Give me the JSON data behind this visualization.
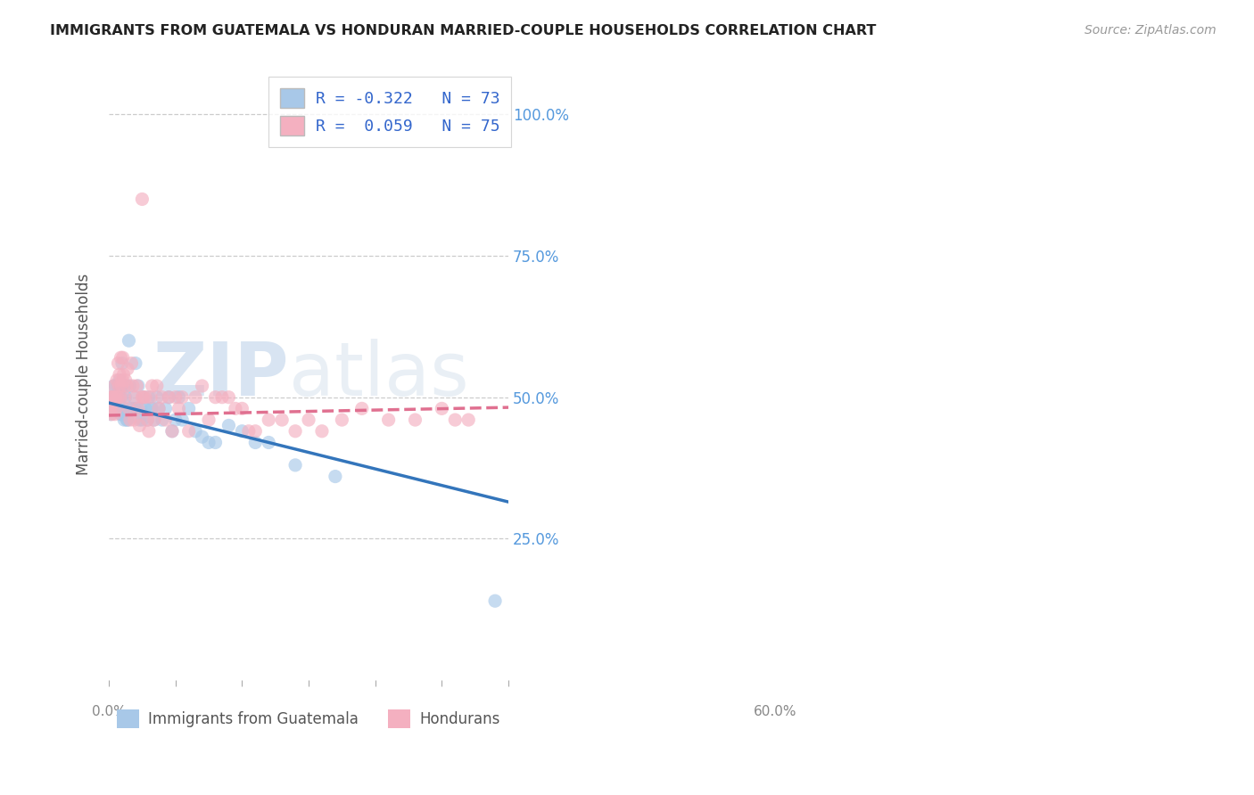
{
  "title": "IMMIGRANTS FROM GUATEMALA VS HONDURAN MARRIED-COUPLE HOUSEHOLDS CORRELATION CHART",
  "source": "Source: ZipAtlas.com",
  "ylabel": "Married-couple Households",
  "ytick_labels": [
    "25.0%",
    "50.0%",
    "75.0%",
    "100.0%"
  ],
  "ytick_values": [
    0.25,
    0.5,
    0.75,
    1.0
  ],
  "xmin": 0.0,
  "xmax": 0.6,
  "ymin": 0.0,
  "ymax": 1.08,
  "legend_label1": "Immigrants from Guatemala",
  "legend_label2": "Hondurans",
  "legend_line1": "R = -0.322   N = 73",
  "legend_line2": "R =  0.059   N = 75",
  "color_blue": "#a8c8e8",
  "color_pink": "#f4b0c0",
  "line_blue": "#3375bb",
  "line_pink": "#e07090",
  "guatemala_x": [
    0.002,
    0.003,
    0.004,
    0.005,
    0.006,
    0.007,
    0.007,
    0.008,
    0.009,
    0.01,
    0.01,
    0.012,
    0.013,
    0.013,
    0.014,
    0.015,
    0.015,
    0.016,
    0.016,
    0.017,
    0.018,
    0.018,
    0.019,
    0.019,
    0.02,
    0.02,
    0.021,
    0.022,
    0.023,
    0.024,
    0.025,
    0.027,
    0.028,
    0.03,
    0.031,
    0.033,
    0.035,
    0.037,
    0.039,
    0.04,
    0.042,
    0.044,
    0.046,
    0.048,
    0.05,
    0.052,
    0.055,
    0.058,
    0.06,
    0.063,
    0.065,
    0.068,
    0.072,
    0.075,
    0.08,
    0.085,
    0.09,
    0.095,
    0.1,
    0.105,
    0.11,
    0.12,
    0.13,
    0.14,
    0.15,
    0.16,
    0.18,
    0.2,
    0.22,
    0.24,
    0.28,
    0.34,
    0.58
  ],
  "guatemala_y": [
    0.48,
    0.47,
    0.5,
    0.49,
    0.5,
    0.52,
    0.48,
    0.5,
    0.48,
    0.49,
    0.52,
    0.5,
    0.48,
    0.5,
    0.52,
    0.49,
    0.51,
    0.5,
    0.53,
    0.48,
    0.52,
    0.47,
    0.5,
    0.47,
    0.56,
    0.52,
    0.48,
    0.48,
    0.46,
    0.52,
    0.5,
    0.46,
    0.46,
    0.6,
    0.52,
    0.48,
    0.48,
    0.5,
    0.48,
    0.56,
    0.48,
    0.52,
    0.46,
    0.48,
    0.46,
    0.5,
    0.48,
    0.46,
    0.5,
    0.48,
    0.48,
    0.46,
    0.5,
    0.48,
    0.46,
    0.48,
    0.5,
    0.44,
    0.46,
    0.5,
    0.46,
    0.48,
    0.44,
    0.43,
    0.42,
    0.42,
    0.45,
    0.44,
    0.42,
    0.42,
    0.38,
    0.36,
    0.14
  ],
  "honduran_x": [
    0.002,
    0.003,
    0.004,
    0.005,
    0.006,
    0.007,
    0.008,
    0.009,
    0.01,
    0.011,
    0.012,
    0.013,
    0.014,
    0.015,
    0.016,
    0.017,
    0.018,
    0.019,
    0.02,
    0.021,
    0.022,
    0.023,
    0.025,
    0.027,
    0.028,
    0.03,
    0.032,
    0.034,
    0.036,
    0.038,
    0.04,
    0.042,
    0.044,
    0.046,
    0.05,
    0.052,
    0.055,
    0.058,
    0.06,
    0.063,
    0.065,
    0.068,
    0.072,
    0.075,
    0.08,
    0.085,
    0.09,
    0.095,
    0.1,
    0.105,
    0.11,
    0.12,
    0.13,
    0.14,
    0.15,
    0.16,
    0.17,
    0.18,
    0.19,
    0.2,
    0.21,
    0.22,
    0.24,
    0.26,
    0.28,
    0.3,
    0.32,
    0.35,
    0.38,
    0.42,
    0.46,
    0.5,
    0.54,
    0.05,
    0.52
  ],
  "honduran_y": [
    0.48,
    0.5,
    0.47,
    0.5,
    0.49,
    0.5,
    0.52,
    0.47,
    0.5,
    0.48,
    0.53,
    0.5,
    0.56,
    0.52,
    0.54,
    0.5,
    0.57,
    0.52,
    0.53,
    0.57,
    0.54,
    0.5,
    0.53,
    0.52,
    0.55,
    0.48,
    0.46,
    0.56,
    0.52,
    0.46,
    0.5,
    0.52,
    0.48,
    0.45,
    0.5,
    0.5,
    0.5,
    0.46,
    0.44,
    0.5,
    0.52,
    0.46,
    0.52,
    0.48,
    0.5,
    0.46,
    0.5,
    0.44,
    0.5,
    0.48,
    0.5,
    0.44,
    0.5,
    0.52,
    0.46,
    0.5,
    0.5,
    0.5,
    0.48,
    0.48,
    0.44,
    0.44,
    0.46,
    0.46,
    0.44,
    0.46,
    0.44,
    0.46,
    0.48,
    0.46,
    0.46,
    0.48,
    0.46,
    0.85,
    0.46
  ],
  "watermark_zip": "ZIP",
  "watermark_atlas": "atlas",
  "background_color": "#ffffff",
  "grid_color": "#cccccc"
}
